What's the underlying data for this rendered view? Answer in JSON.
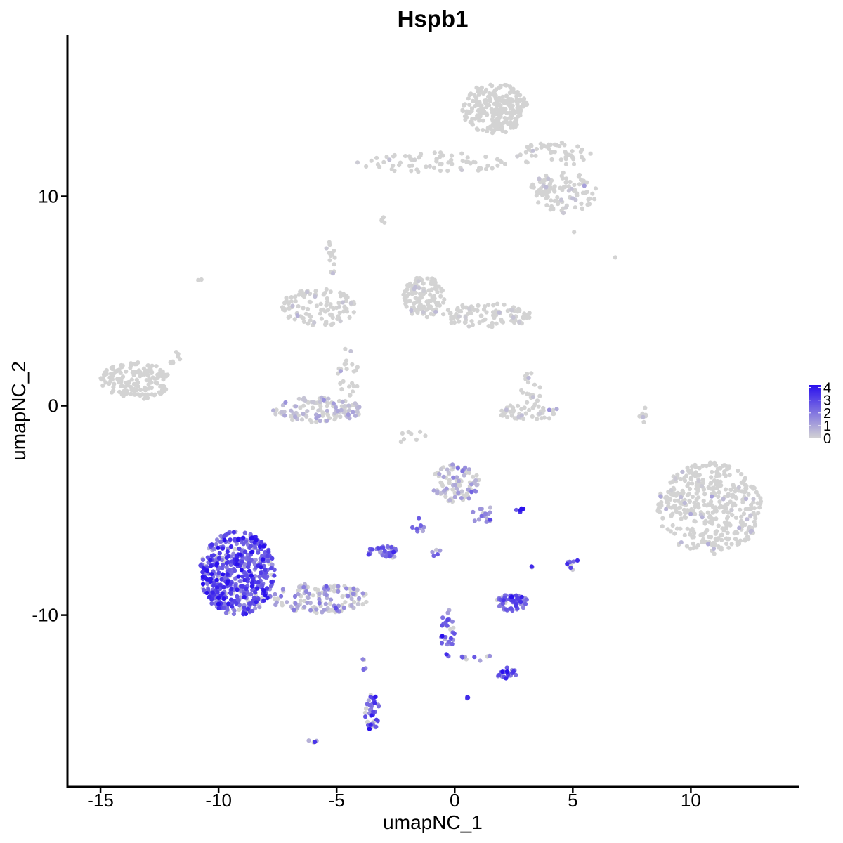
{
  "chart_data": {
    "type": "scatter",
    "title": "Hspb1",
    "xlabel": "umapNC_1",
    "ylabel": "umapNC_2",
    "xlim": [
      -16.4,
      14.6
    ],
    "ylim": [
      -18.2,
      17.7
    ],
    "xticks": [
      -15,
      -10,
      -5,
      0,
      5,
      10
    ],
    "xtick_labels": [
      "-15",
      "-10",
      "-5",
      "0",
      "5",
      "10"
    ],
    "yticks": [
      -10,
      0,
      10
    ],
    "ytick_labels": [
      "-10",
      "0",
      "10"
    ],
    "grid": false,
    "legend": {
      "position": "right",
      "type": "colorbar",
      "range": [
        0,
        4.2
      ],
      "ticks": [
        0,
        1,
        2,
        3,
        4
      ],
      "tick_labels": [
        "0",
        "1",
        "2",
        "3",
        "4"
      ],
      "low_color": "#d3d3d3",
      "high_color": "#2a10ee"
    },
    "clusters": [
      {
        "cx": 1.7,
        "cy": 14.2,
        "rx": 1.4,
        "ry": 1.2,
        "n": 260,
        "expr": 0.0
      },
      {
        "cx": -1.0,
        "cy": 11.6,
        "rx": 3.2,
        "ry": 0.5,
        "n": 70,
        "expr": 0.1
      },
      {
        "cx": 4.6,
        "cy": 10.2,
        "rx": 1.4,
        "ry": 1.0,
        "n": 100,
        "expr": 0.1
      },
      {
        "cx": 4.2,
        "cy": 12.0,
        "rx": 1.6,
        "ry": 0.6,
        "n": 50,
        "expr": 0.05
      },
      {
        "cx": -5.8,
        "cy": 4.7,
        "rx": 1.6,
        "ry": 0.9,
        "n": 110,
        "expr": 0.05
      },
      {
        "cx": -5.3,
        "cy": 7.0,
        "rx": 0.3,
        "ry": 0.9,
        "n": 14,
        "expr": 0.1
      },
      {
        "cx": -1.3,
        "cy": 5.2,
        "rx": 0.9,
        "ry": 1.0,
        "n": 120,
        "expr": 0.05
      },
      {
        "cx": 1.4,
        "cy": 4.3,
        "rx": 1.9,
        "ry": 0.6,
        "n": 100,
        "expr": 0.05
      },
      {
        "cx": -13.5,
        "cy": 1.2,
        "rx": 1.5,
        "ry": 0.9,
        "n": 170,
        "expr": 0.0
      },
      {
        "cx": -5.8,
        "cy": -0.2,
        "rx": 1.9,
        "ry": 0.6,
        "n": 120,
        "expr": 0.5
      },
      {
        "cx": -4.5,
        "cy": 1.6,
        "rx": 0.5,
        "ry": 1.2,
        "n": 25,
        "expr": 0.2
      },
      {
        "cx": 3.1,
        "cy": -0.3,
        "rx": 1.4,
        "ry": 0.4,
        "n": 50,
        "expr": 0.3
      },
      {
        "cx": 3.2,
        "cy": 0.8,
        "rx": 0.5,
        "ry": 0.8,
        "n": 20,
        "expr": 0.1
      },
      {
        "cx": 10.8,
        "cy": -4.9,
        "rx": 2.2,
        "ry": 2.2,
        "n": 420,
        "expr": 0.05
      },
      {
        "cx": 0.1,
        "cy": -3.7,
        "rx": 1.1,
        "ry": 0.9,
        "n": 90,
        "expr": 0.9
      },
      {
        "cx": 1.2,
        "cy": -5.2,
        "rx": 0.6,
        "ry": 0.4,
        "n": 18,
        "expr": 1.5
      },
      {
        "cx": -9.2,
        "cy": -8.0,
        "rx": 1.6,
        "ry": 2.0,
        "n": 550,
        "expr": 2.6
      },
      {
        "cx": -5.8,
        "cy": -9.2,
        "rx": 2.2,
        "ry": 0.7,
        "n": 140,
        "expr": 1.0
      },
      {
        "cx": -3.0,
        "cy": -7.0,
        "rx": 0.7,
        "ry": 0.3,
        "n": 40,
        "expr": 2.2
      },
      {
        "cx": 2.4,
        "cy": -9.4,
        "rx": 0.7,
        "ry": 0.4,
        "n": 65,
        "expr": 2.4
      },
      {
        "cx": -0.3,
        "cy": -10.8,
        "rx": 0.3,
        "ry": 1.2,
        "n": 30,
        "expr": 2.2
      },
      {
        "cx": 2.2,
        "cy": -12.8,
        "rx": 0.4,
        "ry": 0.3,
        "n": 22,
        "expr": 2.8
      },
      {
        "cx": -3.5,
        "cy": -14.6,
        "rx": 0.3,
        "ry": 0.9,
        "n": 40,
        "expr": 2.5
      },
      {
        "cx": 5.0,
        "cy": -7.6,
        "rx": 0.3,
        "ry": 0.3,
        "n": 10,
        "expr": 2.3
      },
      {
        "cx": 7.9,
        "cy": -0.4,
        "rx": 0.2,
        "ry": 0.6,
        "n": 8,
        "expr": 0.3
      },
      {
        "cx": 2.8,
        "cy": -5.0,
        "rx": 0.2,
        "ry": 0.1,
        "n": 6,
        "expr": 3.2
      },
      {
        "cx": 3.3,
        "cy": -7.7,
        "rx": 0.1,
        "ry": 0.1,
        "n": 3,
        "expr": 2.0
      },
      {
        "cx": 0.5,
        "cy": -14.0,
        "rx": 0.1,
        "ry": 0.1,
        "n": 3,
        "expr": 2.0
      },
      {
        "cx": -6.0,
        "cy": -16.0,
        "rx": 0.2,
        "ry": 0.1,
        "n": 4,
        "expr": 1.5
      },
      {
        "cx": -3.8,
        "cy": -12.3,
        "rx": 0.1,
        "ry": 0.5,
        "n": 5,
        "expr": 2.5
      },
      {
        "cx": -0.8,
        "cy": -7.0,
        "rx": 0.2,
        "ry": 0.2,
        "n": 5,
        "expr": 1.5
      },
      {
        "cx": -1.5,
        "cy": -5.8,
        "rx": 0.3,
        "ry": 0.6,
        "n": 8,
        "expr": 1.5
      },
      {
        "cx": 0.9,
        "cy": -12.0,
        "rx": 0.6,
        "ry": 0.2,
        "n": 8,
        "expr": 2.0
      },
      {
        "cx": -1.8,
        "cy": -1.5,
        "rx": 0.8,
        "ry": 0.3,
        "n": 8,
        "expr": 0.3
      },
      {
        "cx": -11.9,
        "cy": 2.3,
        "rx": 0.3,
        "ry": 0.4,
        "n": 8,
        "expr": 0.0
      },
      {
        "cx": -3.0,
        "cy": 8.8,
        "rx": 0.1,
        "ry": 0.2,
        "n": 4,
        "expr": 0.1
      },
      {
        "cx": -10.8,
        "cy": 6.0,
        "rx": 0.1,
        "ry": 0.1,
        "n": 2,
        "expr": 0.0
      },
      {
        "cx": 6.8,
        "cy": 7.1,
        "rx": 0.05,
        "ry": 0.05,
        "n": 1,
        "expr": 0.0
      },
      {
        "cx": 5.1,
        "cy": 8.3,
        "rx": 0.05,
        "ry": 0.05,
        "n": 1,
        "expr": 0.0
      }
    ]
  }
}
